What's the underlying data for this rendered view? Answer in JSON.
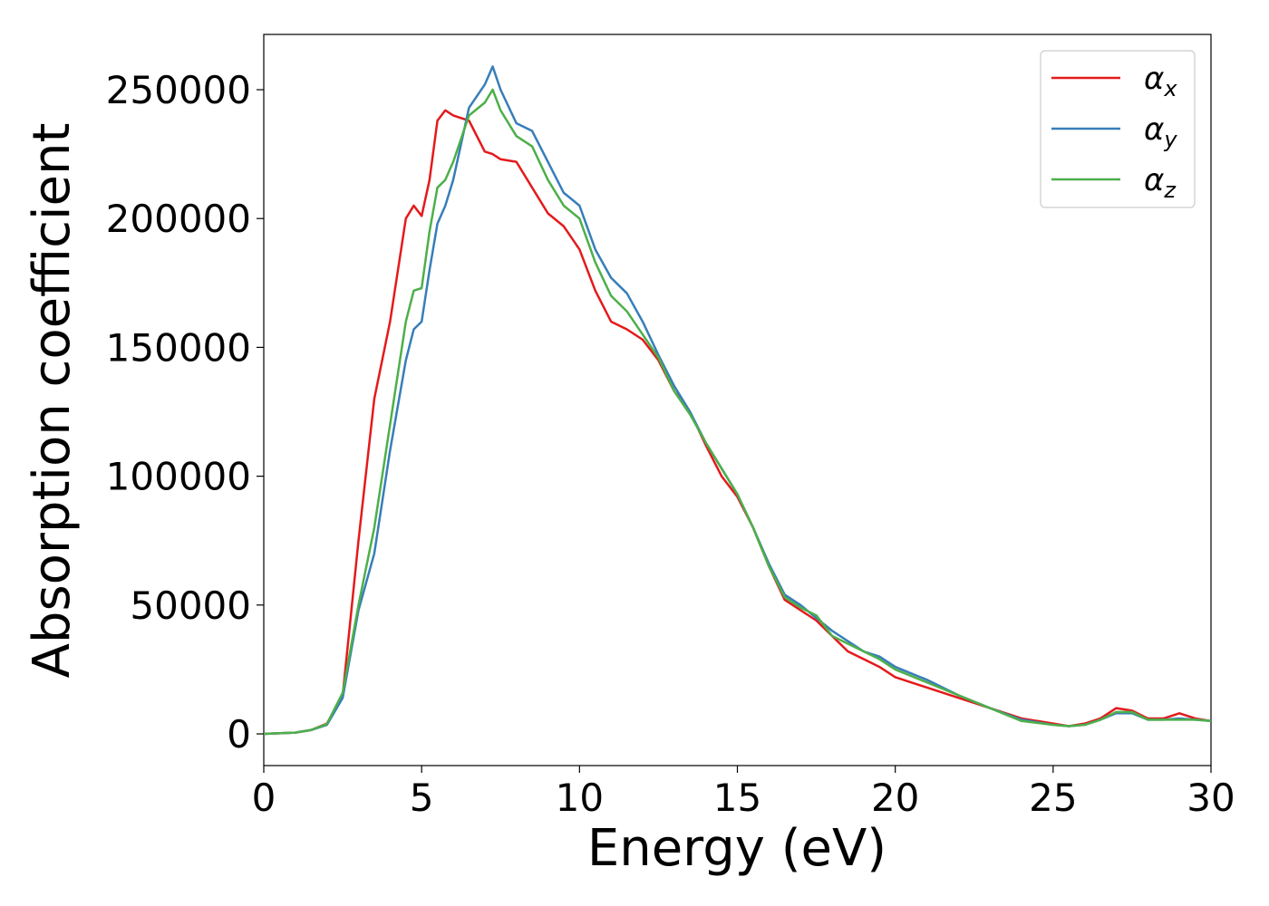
{
  "chart_data": {
    "type": "line",
    "xlabel": "Energy (eV)",
    "ylabel": "Absorption coefficient",
    "x": [
      0,
      1,
      1.5,
      2,
      2.5,
      3,
      3.5,
      4,
      4.5,
      4.75,
      5,
      5.25,
      5.5,
      5.75,
      6,
      6.5,
      7,
      7.25,
      7.5,
      8,
      8.5,
      9,
      9.5,
      10,
      10.5,
      11,
      11.5,
      12,
      12.5,
      13,
      13.5,
      14,
      14.5,
      15,
      15.5,
      16,
      16.5,
      17,
      17.5,
      18,
      18.5,
      19,
      19.5,
      20,
      21,
      22,
      23,
      24,
      25,
      25.5,
      26,
      26.5,
      27,
      27.5,
      28,
      28.5,
      29,
      29.5,
      30
    ],
    "series": [
      {
        "name": "αx",
        "color": "#e41a1c",
        "values": [
          0,
          500,
          1500,
          4000,
          15000,
          75000,
          130000,
          160000,
          200000,
          205000,
          201000,
          215000,
          238000,
          242000,
          240000,
          238000,
          226000,
          225000,
          223000,
          222000,
          212000,
          202000,
          197000,
          188000,
          172000,
          160000,
          157000,
          153000,
          145000,
          133000,
          125000,
          112000,
          100000,
          92000,
          80000,
          65000,
          52000,
          48000,
          44000,
          38000,
          32000,
          29000,
          26000,
          22000,
          18000,
          14000,
          10000,
          6000,
          4000,
          3000,
          4000,
          6000,
          10000,
          9000,
          6000,
          6000,
          8000,
          6000,
          5000
        ]
      },
      {
        "name": "αy",
        "color": "#377eb8",
        "values": [
          0,
          500,
          1500,
          3500,
          14000,
          48000,
          70000,
          110000,
          145000,
          157000,
          160000,
          180000,
          198000,
          205000,
          215000,
          243000,
          252000,
          259000,
          250000,
          237000,
          234000,
          222000,
          210000,
          205000,
          188000,
          177000,
          171000,
          160000,
          147000,
          135000,
          125000,
          113000,
          103000,
          93000,
          80000,
          66000,
          54000,
          50000,
          45000,
          40000,
          36000,
          32000,
          30000,
          26000,
          21000,
          15000,
          10000,
          5500,
          3500,
          3000,
          3500,
          5500,
          8000,
          8000,
          5500,
          5500,
          6000,
          5500,
          5000
        ]
      },
      {
        "name": "αz",
        "color": "#4daf4a",
        "values": [
          0,
          500,
          1500,
          3800,
          16000,
          50000,
          80000,
          120000,
          160000,
          172000,
          173000,
          195000,
          212000,
          215000,
          222000,
          240000,
          245000,
          250000,
          242000,
          232000,
          228000,
          215000,
          205000,
          200000,
          183000,
          170000,
          164000,
          155000,
          146000,
          133000,
          124000,
          113000,
          103000,
          93000,
          80000,
          65000,
          53000,
          49000,
          46000,
          38000,
          35000,
          32000,
          29000,
          25000,
          20000,
          15000,
          10000,
          5000,
          3500,
          3000,
          3500,
          5500,
          8500,
          8500,
          5500,
          5500,
          5500,
          5500,
          5000
        ]
      }
    ],
    "xlim": [
      0,
      30
    ],
    "xticks": [
      0,
      5,
      10,
      15,
      20,
      25,
      30
    ],
    "ylim": [
      -12300,
      271450
    ],
    "yticks": [
      0,
      50000,
      100000,
      150000,
      200000,
      250000
    ],
    "grid": false,
    "legend": "upper right"
  }
}
